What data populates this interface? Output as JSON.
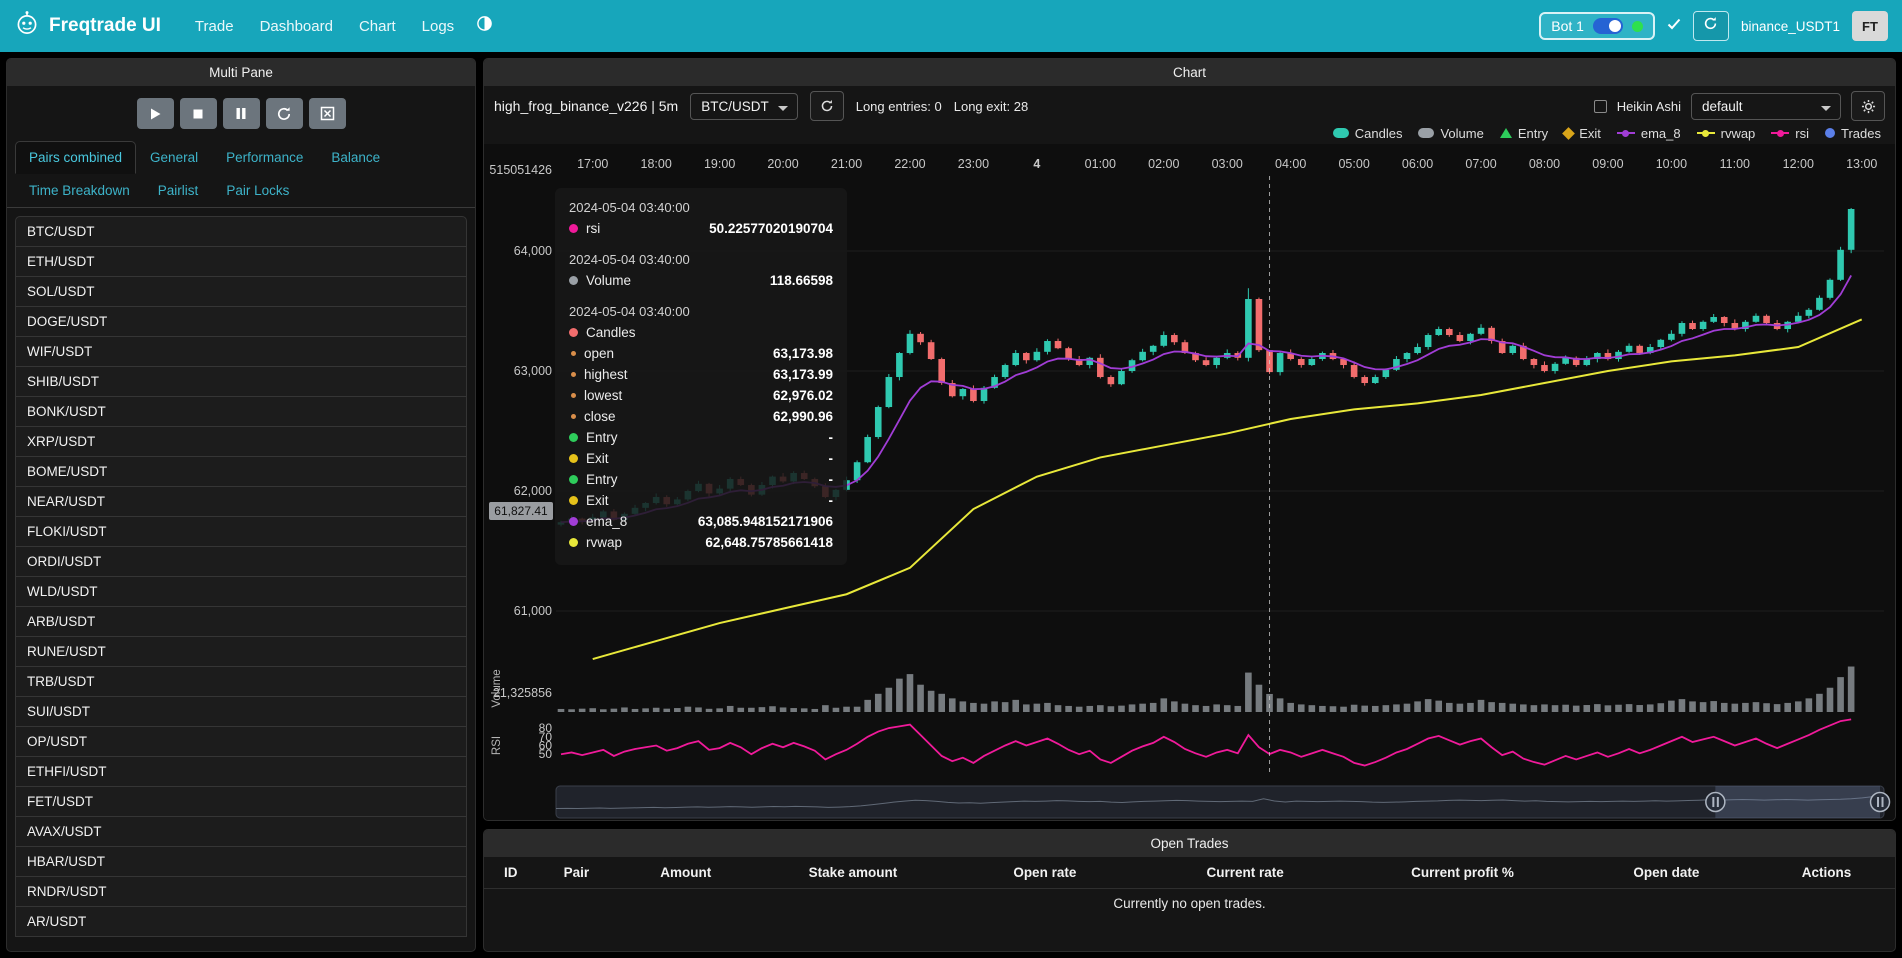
{
  "navbar": {
    "brand": "Freqtrade UI",
    "links": [
      "Trade",
      "Dashboard",
      "Chart",
      "Logs"
    ],
    "bot_chip": {
      "label": "Bot 1"
    },
    "login": "binance_USDT1",
    "avatar": "FT"
  },
  "left_panel": {
    "title": "Multi Pane",
    "tabs": [
      "Pairs combined",
      "General",
      "Performance",
      "Balance",
      "Time Breakdown",
      "Pairlist",
      "Pair Locks"
    ],
    "active_tab": "Pairs combined",
    "pairs": [
      "BTC/USDT",
      "ETH/USDT",
      "SOL/USDT",
      "DOGE/USDT",
      "WIF/USDT",
      "SHIB/USDT",
      "BONK/USDT",
      "XRP/USDT",
      "BOME/USDT",
      "NEAR/USDT",
      "FLOKI/USDT",
      "ORDI/USDT",
      "WLD/USDT",
      "ARB/USDT",
      "RUNE/USDT",
      "TRB/USDT",
      "SUI/USDT",
      "OP/USDT",
      "ETHFI/USDT",
      "FET/USDT",
      "AVAX/USDT",
      "HBAR/USDT",
      "RNDR/USDT",
      "AR/USDT"
    ]
  },
  "chart": {
    "title": "Chart",
    "strategy": "high_frog_binance_v226 | 5m",
    "pair_select": "BTC/USDT",
    "entries_info": "Long entries: 0",
    "exits_info": "Long exit: 28",
    "heikin_label": "Heikin Ashi",
    "plot_select": "default",
    "crosshair_tag": "61,827.41",
    "legend": [
      {
        "label": "Candles",
        "type": "chip",
        "color": "#2fc9b0"
      },
      {
        "label": "Volume",
        "type": "chip",
        "color": "#9aa0a6"
      },
      {
        "label": "Entry",
        "type": "triangle",
        "color": "#2ecc5b"
      },
      {
        "label": "Exit",
        "type": "diamond",
        "color": "#d9a51a"
      },
      {
        "label": "ema_8",
        "type": "line",
        "color": "#a13dd6"
      },
      {
        "label": "rvwap",
        "type": "line",
        "color": "#e8e83a"
      },
      {
        "label": "rsi",
        "type": "line",
        "color": "#f01a9a"
      },
      {
        "label": "Trades",
        "type": "circle",
        "color": "#5b7fe8"
      }
    ],
    "tooltip": {
      "sections": [
        {
          "date": "2024-05-04 03:40:00",
          "rows": [
            {
              "dot": "#f01a9a",
              "label": "rsi",
              "value": "50.22577020190704"
            }
          ]
        },
        {
          "date": "2024-05-04 03:40:00",
          "rows": [
            {
              "dot": "#9aa0a6",
              "label": "Volume",
              "value": "118.66598"
            }
          ]
        },
        {
          "date": "2024-05-04 03:40:00",
          "rows": [
            {
              "dot": "#f26d6d",
              "label": "Candles",
              "value": ""
            },
            {
              "dot": "#d98e4a",
              "small": true,
              "label": "open",
              "value": "63,173.98"
            },
            {
              "dot": "#d98e4a",
              "small": true,
              "label": "highest",
              "value": "63,173.99"
            },
            {
              "dot": "#d98e4a",
              "small": true,
              "label": "lowest",
              "value": "62,976.02"
            },
            {
              "dot": "#d98e4a",
              "small": true,
              "label": "close",
              "value": "62,990.96"
            },
            {
              "dot": "#2ecc5b",
              "label": "Entry",
              "value": "-"
            },
            {
              "dot": "#e6c21a",
              "label": "Exit",
              "value": "-"
            },
            {
              "dot": "#2ecc5b",
              "label": "Entry",
              "value": "-"
            },
            {
              "dot": "#e6c21a",
              "label": "Exit",
              "value": "-"
            },
            {
              "dot": "#a13dd6",
              "label": "ema_8",
              "value": "63,085.948152171906"
            },
            {
              "dot": "#e8e83a",
              "label": "rvwap",
              "value": "62,648.75785661418"
            }
          ]
        }
      ]
    }
  },
  "chart_data": {
    "type": "candlestick+volume+rsi",
    "x_labels": [
      "17:00",
      "18:00",
      "19:00",
      "20:00",
      "21:00",
      "22:00",
      "23:00",
      "4",
      "01:00",
      "02:00",
      "03:00",
      "04:00",
      "05:00",
      "06:00",
      "07:00",
      "08:00",
      "09:00",
      "10:00",
      "11:00",
      "12:00",
      "13:00"
    ],
    "price_ticks": [
      "64,000",
      "63,000",
      "62,000",
      "61,000"
    ],
    "price_tick_values": [
      64000,
      63000,
      62000,
      61000
    ],
    "price_top_label": "515051426",
    "volume_tick": "21,325856",
    "rsi_ticks": [
      80,
      70,
      60,
      50
    ],
    "axis_labels": {
      "volume": "Volume",
      "rsi": "RSI"
    },
    "closes": [
      61740,
      61770,
      61750,
      61780,
      61830,
      61760,
      61810,
      61860,
      61900,
      61950,
      61890,
      61930,
      62000,
      62060,
      61980,
      62020,
      62100,
      62050,
      61970,
      62050,
      62120,
      62080,
      62150,
      62100,
      62040,
      61950,
      62010,
      62090,
      62240,
      62450,
      62700,
      62950,
      63150,
      63310,
      63240,
      63100,
      62900,
      62790,
      62850,
      62750,
      62860,
      62950,
      63050,
      63150,
      63090,
      63160,
      63250,
      63190,
      63100,
      63050,
      63110,
      62950,
      62890,
      63000,
      63090,
      63160,
      63210,
      63300,
      63240,
      63150,
      63090,
      63050,
      63110,
      63150,
      63110,
      63600,
      63174,
      62991,
      63150,
      63100,
      63050,
      63100,
      63150,
      63100,
      63050,
      62950,
      62900,
      62950,
      63010,
      63100,
      63150,
      63200,
      63300,
      63350,
      63300,
      63250,
      63310,
      63360,
      63250,
      63150,
      63210,
      63100,
      63050,
      63000,
      63060,
      63110,
      63050,
      63100,
      63150,
      63100,
      63160,
      63210,
      63150,
      63200,
      63260,
      63310,
      63400,
      63350,
      63410,
      63450,
      63400,
      63350,
      63410,
      63460,
      63400,
      63350,
      63410,
      63460,
      63510,
      63610,
      63760,
      64010,
      64350
    ],
    "volumes": [
      20,
      18,
      22,
      25,
      18,
      22,
      30,
      20,
      24,
      28,
      22,
      26,
      35,
      30,
      21,
      24,
      40,
      28,
      28,
      32,
      38,
      30,
      26,
      24,
      20,
      45,
      28,
      35,
      35,
      80,
      120,
      160,
      220,
      250,
      180,
      140,
      120,
      90,
      70,
      60,
      55,
      70,
      65,
      80,
      50,
      55,
      60,
      45,
      40,
      35,
      40,
      45,
      38,
      42,
      50,
      55,
      60,
      90,
      70,
      55,
      45,
      40,
      50,
      45,
      40,
      260,
      180,
      119,
      90,
      60,
      50,
      45,
      40,
      38,
      35,
      48,
      42,
      40,
      45,
      50,
      55,
      70,
      85,
      75,
      60,
      55,
      60,
      80,
      65,
      60,
      55,
      50,
      45,
      50,
      45,
      48,
      42,
      46,
      52,
      44,
      48,
      52,
      46,
      50,
      58,
      75,
      85,
      70,
      65,
      72,
      60,
      55,
      60,
      65,
      58,
      52,
      60,
      70,
      90,
      120,
      160,
      230,
      300
    ],
    "rsi": [
      50,
      52,
      49,
      52,
      55,
      48,
      53,
      56,
      58,
      60,
      54,
      57,
      62,
      65,
      55,
      57,
      63,
      58,
      50,
      57,
      62,
      58,
      63,
      59,
      54,
      44,
      50,
      55,
      62,
      70,
      76,
      80,
      82,
      84,
      72,
      60,
      48,
      42,
      46,
      40,
      48,
      54,
      60,
      65,
      60,
      64,
      68,
      62,
      55,
      50,
      54,
      44,
      40,
      47,
      54,
      59,
      63,
      70,
      64,
      56,
      51,
      47,
      52,
      55,
      51,
      72,
      58,
      50.2,
      55,
      52,
      47,
      51,
      55,
      51,
      47,
      40,
      37,
      41,
      46,
      52,
      56,
      62,
      68,
      71,
      66,
      61,
      65,
      68,
      58,
      49,
      53,
      45,
      41,
      38,
      43,
      48,
      44,
      48,
      52,
      47,
      51,
      56,
      51,
      55,
      60,
      65,
      70,
      64,
      67,
      70,
      65,
      60,
      64,
      68,
      62,
      57,
      62,
      67,
      72,
      78,
      83,
      88,
      90
    ],
    "rvwap_anchors": [
      60600,
      60750,
      60900,
      61020,
      61140,
      61360,
      61850,
      62120,
      62280,
      62380,
      62480,
      62600,
      62680,
      62730,
      62800,
      62900,
      63000,
      63080,
      63130,
      63200,
      63430
    ],
    "ema_period": 8,
    "wick_high": [
      12,
      25,
      8,
      30,
      15,
      20
    ],
    "wick_low": [
      15,
      10,
      28,
      12,
      22,
      8
    ],
    "overrides": {
      "65": [
        63110,
        63690,
        63080,
        63600
      ],
      "67": [
        63174,
        63174,
        62976,
        62991
      ]
    },
    "crosshair_index": 67,
    "crosshair_price": 61827.41,
    "nav_window": [
      0.873,
      0.997
    ],
    "colors": {
      "up": "#2fc9b0",
      "down": "#f26d6d",
      "ema": "#a13dd6",
      "rvwap": "#e8e83a",
      "rsi": "#f01a9a",
      "volume": "#9aa0a6"
    }
  },
  "open_trades": {
    "title": "Open Trades",
    "columns": [
      "ID",
      "Pair",
      "Amount",
      "Stake amount",
      "Open rate",
      "Current rate",
      "Current profit %",
      "Open date",
      "Actions"
    ],
    "empty": "Currently no open trades."
  }
}
